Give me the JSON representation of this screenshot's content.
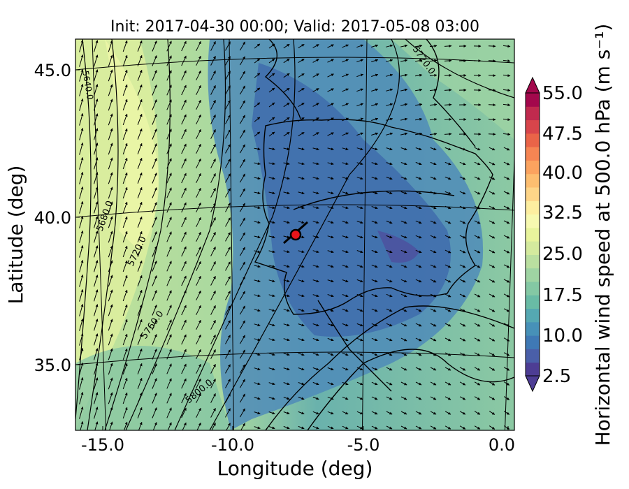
{
  "title": "Init: 2017-04-30 00:00; Valid: 2017-05-08 03:00",
  "map": {
    "xlabel": "Longitude (deg)",
    "ylabel": "Latitude (deg)",
    "x_ticks": [
      "-15.0",
      "-10.0",
      "-5.0",
      "0.0"
    ],
    "y_ticks": [
      "45.0",
      "40.0",
      "35.0"
    ],
    "x_range": [
      -16.0,
      0.2
    ],
    "y_range": [
      32.6,
      46.2
    ],
    "contour_labels": [
      "5640.0",
      "5680.0",
      "5720.0",
      "5760.0",
      "5800.0",
      "5720.0"
    ],
    "marker": {
      "lon": -7.7,
      "lat": 39.3,
      "color": "#e8141a"
    }
  },
  "colorbar": {
    "label": "Horizontal wind speed at 500.0 hPa (m s⁻¹)",
    "tick_labels": [
      "55.0",
      "47.5",
      "40.0",
      "32.5",
      "25.0",
      "17.5",
      "10.0",
      "2.5"
    ],
    "min": 2.5,
    "max": 55.0,
    "extend": "both",
    "colors": [
      "#4d3d94",
      "#4a5fa9",
      "#3f79b5",
      "#4791b8",
      "#55a8b2",
      "#69bba5",
      "#84c8a4",
      "#9fd4a3",
      "#badfa0",
      "#d4ea9e",
      "#e8f49c",
      "#f7f9b0",
      "#fdeea0",
      "#fed588",
      "#fdbe70",
      "#fba35f",
      "#f68553",
      "#ea6448",
      "#d8454b",
      "#c02a4e",
      "#a3084c"
    ]
  }
}
